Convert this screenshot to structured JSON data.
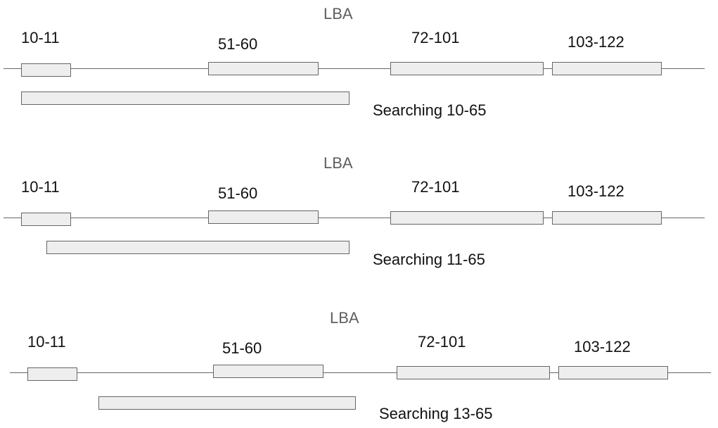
{
  "panels": [
    {
      "axis_label": "LBA",
      "ranges": [
        {
          "label": "10-11",
          "start": 10,
          "end": 11
        },
        {
          "label": "51-60",
          "start": 51,
          "end": 60
        },
        {
          "label": "72-101",
          "start": 72,
          "end": 101
        },
        {
          "label": "103-122",
          "start": 103,
          "end": 122
        }
      ],
      "search": {
        "label": "Searching 10-65",
        "start": 10,
        "end": 65
      }
    },
    {
      "axis_label": "LBA",
      "ranges": [
        {
          "label": "10-11",
          "start": 10,
          "end": 11
        },
        {
          "label": "51-60",
          "start": 51,
          "end": 60
        },
        {
          "label": "72-101",
          "start": 72,
          "end": 101
        },
        {
          "label": "103-122",
          "start": 103,
          "end": 122
        }
      ],
      "search": {
        "label": "Searching 11-65",
        "start": 11,
        "end": 65
      }
    },
    {
      "axis_label": "LBA",
      "ranges": [
        {
          "label": "10-11",
          "start": 10,
          "end": 11
        },
        {
          "label": "51-60",
          "start": 51,
          "end": 60
        },
        {
          "label": "72-101",
          "start": 72,
          "end": 101
        },
        {
          "label": "103-122",
          "start": 103,
          "end": 122
        }
      ],
      "search": {
        "label": "Searching 13-65",
        "start": 13,
        "end": 65
      }
    }
  ]
}
